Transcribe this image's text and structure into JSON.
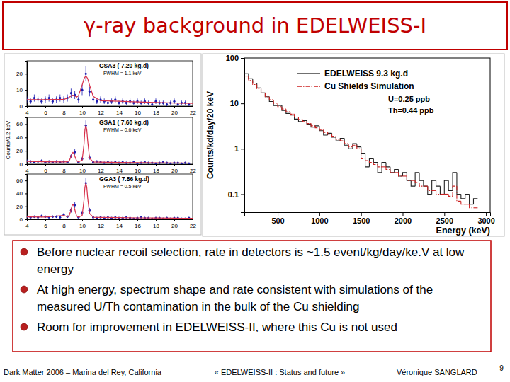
{
  "slide": {
    "title": "γ-ray background in EDELWEISS-I",
    "bullets": [
      "Before nuclear recoil selection, rate in detectors is ~1.5 event/kg/day/ke.V at low energy",
      "At high energy, spectrum shape and rate consistent with simulations of the measured U/Th contamination in the bulk of the Cu shielding",
      "Room for improvement in EDELWEISS-II, where this Cu is not used"
    ],
    "footer": {
      "event": "Dark Matter 2006 – Marina del Rey, California",
      "talk": "« EDELWEISS-II : Status and future »",
      "author": "Véronique SANGLARD",
      "page": 9
    }
  },
  "chart_data": [
    {
      "type": "scatter",
      "title": "GSA3 ( 7.20 kg.d)",
      "annotations": [
        "FWHM = 1.1 keV"
      ],
      "xlim": [
        4,
        22
      ],
      "xticks": [
        4,
        6,
        8,
        10,
        12,
        14,
        16,
        18,
        20,
        22
      ],
      "ylim": [
        0,
        28
      ],
      "yticks": [
        0,
        10,
        20
      ],
      "series": [
        {
          "type": "scatter",
          "color": "#1c1cb0",
          "marker": "circle",
          "x": [
            4,
            4.4,
            4.8,
            5.2,
            5.6,
            6,
            6.4,
            6.8,
            7.2,
            7.6,
            8,
            8.4,
            8.8,
            9.2,
            9.6,
            10,
            10.4,
            10.8,
            11.2,
            11.6,
            12,
            12.4,
            12.8,
            13.2,
            13.6,
            14,
            14.4,
            14.8,
            15.2,
            15.6,
            16,
            16.4,
            16.8,
            17.2,
            17.6,
            18,
            18.4,
            18.8,
            19.2,
            19.6,
            20,
            20.4,
            20.8,
            21.2,
            21.6
          ],
          "values": [
            4,
            3,
            5,
            4,
            3,
            4,
            5,
            3,
            4,
            5,
            4,
            5,
            8,
            7,
            4,
            10,
            20,
            9,
            4,
            3,
            4,
            3,
            2,
            3,
            4,
            2,
            3,
            2,
            3,
            2,
            3,
            2,
            3,
            2,
            1,
            3,
            2,
            2,
            1,
            2,
            3,
            1,
            2,
            2,
            1
          ],
          "errors": [
            2,
            1.7,
            2.2,
            2,
            1.7,
            2,
            2.2,
            1.7,
            2,
            2.2,
            2,
            2.2,
            2.8,
            2.6,
            2,
            3.2,
            4.5,
            3,
            2,
            1.7,
            2,
            1.7,
            1.4,
            1.7,
            2,
            1.4,
            1.7,
            1.4,
            1.7,
            1.4,
            1.7,
            1.4,
            1.7,
            1.4,
            1,
            1.7,
            1.4,
            1.4,
            1,
            1.4,
            1.7,
            1,
            1.4,
            1.4,
            1
          ]
        },
        {
          "type": "line",
          "color": "#d8304a",
          "x": [
            4,
            6,
            8,
            8.4,
            8.6,
            8.8,
            8.9,
            9,
            9.1,
            9.2,
            9.4,
            9.6,
            10,
            10.2,
            10.3,
            10.4,
            10.5,
            10.6,
            10.8,
            11.2,
            12,
            14,
            16,
            18,
            20,
            22
          ],
          "values": [
            4,
            4,
            4.2,
            4.8,
            5.5,
            6.3,
            6.6,
            6.7,
            6.6,
            6.3,
            5.6,
            6.5,
            13,
            17,
            18,
            18.3,
            18,
            17,
            13,
            6,
            3.3,
            3,
            2.6,
            2.2,
            1.9,
            1.7
          ]
        }
      ]
    },
    {
      "type": "scatter",
      "title": "GSA1 ( 7.60 kg.d)",
      "annotations": [
        "FWHM = 0.6 keV"
      ],
      "ylabel": "Counts/0.2 keV",
      "xlim": [
        4,
        22
      ],
      "xticks": [
        4,
        6,
        8,
        10,
        12,
        14,
        16,
        18,
        20,
        22
      ],
      "ylim": [
        0,
        70
      ],
      "yticks": [
        0,
        20,
        40,
        60
      ],
      "series": [
        {
          "type": "scatter",
          "color": "#1c1cb0",
          "marker": "circle",
          "x": [
            4,
            4.4,
            4.8,
            5.2,
            5.6,
            6,
            6.4,
            6.8,
            7.2,
            7.6,
            8,
            8.4,
            8.8,
            9.2,
            9.6,
            10,
            10.4,
            10.8,
            11.2,
            11.6,
            12,
            12.4,
            12.8,
            13.2,
            13.6,
            14,
            14.4,
            14.8,
            15.2,
            15.6,
            16,
            16.4,
            16.8,
            17.2,
            17.6,
            18,
            18.4,
            18.8,
            19.2,
            19.6,
            20,
            20.4,
            20.8,
            21.2,
            21.6
          ],
          "values": [
            5,
            4,
            3,
            4,
            5,
            3,
            4,
            3,
            4,
            3,
            4,
            3,
            12,
            18,
            3,
            8,
            58,
            10,
            3,
            4,
            3,
            2,
            3,
            2,
            3,
            2,
            3,
            2,
            2,
            3,
            1,
            2,
            3,
            2,
            2,
            1,
            2,
            3,
            2,
            1,
            2,
            2,
            1,
            2,
            1
          ],
          "errors": [
            2.2,
            2,
            1.7,
            2,
            2.2,
            1.7,
            2,
            1.7,
            2,
            1.7,
            2,
            1.7,
            3.5,
            4.2,
            1.7,
            2.8,
            7.6,
            3.2,
            1.7,
            2,
            1.7,
            1.4,
            1.7,
            1.4,
            1.7,
            1.4,
            1.7,
            1.4,
            1.4,
            1.7,
            1,
            1.4,
            1.7,
            1.4,
            1.4,
            1,
            1.4,
            1.7,
            1.4,
            1,
            1.4,
            1.4,
            1,
            1.4,
            1
          ]
        },
        {
          "type": "line",
          "color": "#d8304a",
          "x": [
            4,
            6,
            8,
            8.4,
            8.6,
            8.8,
            8.9,
            9,
            9.1,
            9.2,
            9.4,
            9.6,
            10,
            10.2,
            10.3,
            10.4,
            10.5,
            10.6,
            10.8,
            11.2,
            12,
            14,
            16,
            18,
            20,
            22
          ],
          "values": [
            4,
            3.6,
            3.3,
            3.5,
            5,
            12,
            16,
            17.5,
            16,
            12,
            5,
            3.3,
            6,
            30,
            52,
            58,
            52,
            35,
            9,
            3.2,
            3,
            2.6,
            2.3,
            2,
            1.8,
            1.6
          ]
        }
      ]
    },
    {
      "type": "scatter",
      "title": "GGA3 ( 7.86 kg.d)",
      "annotations": [
        "FWHM = 0.5 keV"
      ],
      "xlim": [
        4,
        22
      ],
      "xticks": [
        4,
        6,
        8,
        10,
        12,
        14,
        16,
        18,
        20,
        22
      ],
      "ylim": [
        0,
        70
      ],
      "yticks": [
        0,
        20,
        40,
        60
      ],
      "series": [
        {
          "type": "scatter",
          "color": "#1c1cb0",
          "marker": "circle",
          "x": [
            4,
            4.4,
            4.8,
            5.2,
            5.6,
            6,
            6.4,
            6.8,
            7.2,
            7.6,
            8,
            8.4,
            8.8,
            9.2,
            9.6,
            10,
            10.4,
            10.8,
            11.2,
            11.6,
            12,
            12.4,
            12.8,
            13.2,
            13.6,
            14,
            14.4,
            14.8,
            15.2,
            15.6,
            16,
            16.4,
            16.8,
            17.2,
            17.6,
            18,
            18.4,
            18.8,
            19.2,
            19.6,
            20,
            20.4,
            20.8,
            21.2,
            21.6
          ],
          "values": [
            4,
            3,
            4,
            3,
            5,
            4,
            3,
            4,
            4,
            3,
            7,
            4,
            14,
            22,
            3,
            10,
            56,
            14,
            3,
            2,
            3,
            2,
            3,
            2,
            3,
            2,
            2,
            3,
            2,
            1,
            2,
            3,
            2,
            2,
            1,
            2,
            2,
            1,
            2,
            1,
            2,
            2,
            1,
            1,
            2
          ],
          "errors": [
            2,
            1.7,
            2,
            1.7,
            2.2,
            2,
            1.7,
            2,
            2,
            1.7,
            2.6,
            2,
            3.7,
            4.7,
            1.7,
            3.2,
            7.5,
            3.7,
            1.7,
            1.4,
            1.7,
            1.4,
            1.7,
            1.4,
            1.7,
            1.4,
            1.4,
            1.7,
            1.4,
            1,
            1.4,
            1.7,
            1.4,
            1.4,
            1,
            1.4,
            1.4,
            1,
            1.4,
            1,
            1.4,
            1.4,
            1,
            1,
            1.4
          ]
        },
        {
          "type": "line",
          "color": "#d8304a",
          "x": [
            4,
            6,
            8,
            8.4,
            8.6,
            8.8,
            8.9,
            9,
            9.1,
            9.2,
            9.4,
            9.6,
            10,
            10.2,
            10.3,
            10.4,
            10.5,
            10.6,
            10.8,
            11.2,
            12,
            14,
            16,
            18,
            20,
            22
          ],
          "values": [
            3.6,
            3.5,
            6,
            4,
            6,
            15,
            21,
            23,
            21,
            15,
            5,
            3.2,
            6,
            30,
            50,
            56,
            50,
            33,
            9,
            3,
            2.8,
            2.5,
            2.2,
            2,
            1.7,
            1.5
          ]
        }
      ]
    },
    {
      "type": "histogram",
      "xlabel": "Energy (keV)",
      "ylabel": "Counts/kd/day/20 keV",
      "log": "y",
      "legend": "top-right",
      "annotations": [
        "U=0.25 ppb",
        "Th=0.44 ppb"
      ],
      "xlim": [
        100,
        3050
      ],
      "xticks": [
        500,
        1000,
        1500,
        2000,
        2500,
        3000
      ],
      "ylim": [
        0.04,
        100
      ],
      "yticks": [
        0.1,
        1,
        10,
        100
      ],
      "bins": [
        100,
        150,
        200,
        250,
        300,
        350,
        400,
        450,
        500,
        550,
        600,
        650,
        700,
        750,
        800,
        850,
        900,
        950,
        1000,
        1050,
        1100,
        1150,
        1200,
        1250,
        1300,
        1350,
        1400,
        1450,
        1500,
        1550,
        1600,
        1650,
        1700,
        1750,
        1800,
        1850,
        1900,
        1950,
        2000,
        2050,
        2100,
        2150,
        2200,
        2250,
        2300,
        2350,
        2400,
        2450,
        2500,
        2550,
        2600,
        2650,
        2700,
        2750,
        2800,
        2850,
        2900
      ],
      "series": [
        {
          "name": "EDELWEISS 9.3 kg.d",
          "color": "#222222",
          "line_style": "solid",
          "values": [
            45,
            35,
            28,
            22,
            17,
            14,
            11,
            9,
            9,
            7,
            6,
            5.5,
            4.5,
            4,
            4.2,
            3.5,
            3,
            3.2,
            2.5,
            2,
            2.2,
            1.8,
            1.5,
            1.7,
            1.2,
            1,
            1.3,
            1.1,
            0.8,
            0.4,
            0.6,
            0.5,
            0.3,
            0.5,
            0.4,
            0.3,
            0.35,
            0.25,
            0.3,
            0.2,
            0.15,
            0.3,
            0.2,
            0.15,
            0.1,
            0.2,
            0.15,
            0.1,
            0.2,
            0.12,
            0.3,
            0.1,
            0.08,
            0.1,
            0.06,
            0.08
          ]
        },
        {
          "name": "Cu Shields Simulation",
          "color": "#cc2222",
          "line_style": "dashdot",
          "values": [
            40,
            32,
            26,
            21,
            17,
            14,
            12,
            10,
            8.5,
            7.5,
            6.5,
            5.8,
            5,
            4.4,
            4,
            3.6,
            3.2,
            2.9,
            2.6,
            2.3,
            2.1,
            1.9,
            1.6,
            1.5,
            1.3,
            1.1,
            1.2,
            1,
            0.6,
            0.55,
            0.5,
            0.45,
            0.4,
            0.4,
            0.35,
            0.3,
            0.3,
            0.25,
            0.25,
            0.2,
            0.2,
            0.18,
            0.15,
            0.15,
            0.12,
            0.12,
            0.1,
            0.1,
            0.1,
            0.09,
            0.15,
            0.07,
            0.06,
            0.06,
            0.05,
            0.05
          ]
        }
      ]
    }
  ]
}
